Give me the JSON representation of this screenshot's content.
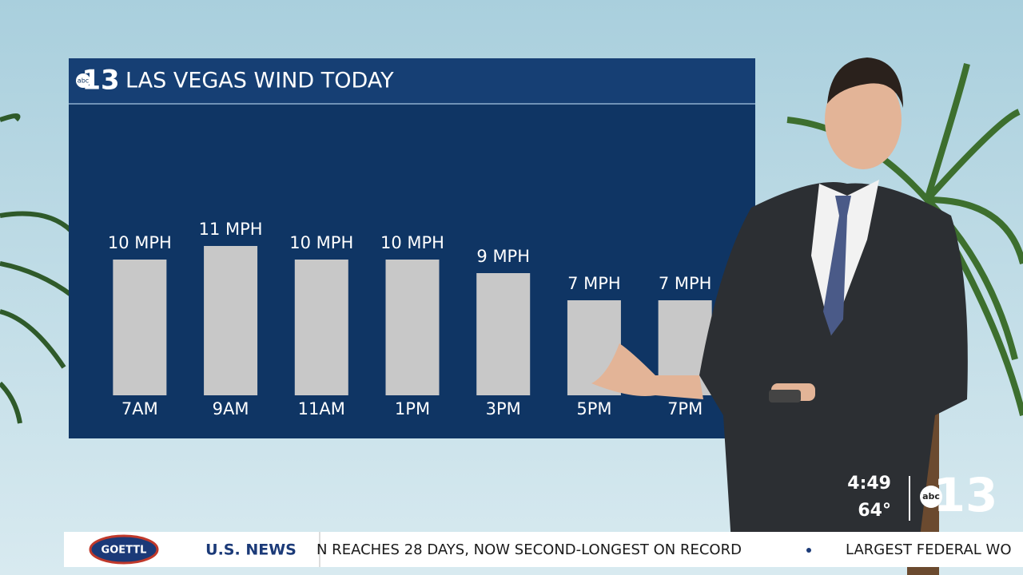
{
  "chart_data": {
    "type": "bar",
    "title": "LAS VEGAS WIND TODAY",
    "categories": [
      "7AM",
      "9AM",
      "11AM",
      "1PM",
      "3PM",
      "5PM",
      "7PM"
    ],
    "values": [
      10,
      11,
      10,
      10,
      9,
      7,
      7
    ],
    "value_labels": [
      "10 MPH",
      "11 MPH",
      "10 MPH",
      "10 MPH",
      "9 MPH",
      "7 MPH",
      "7 MPH"
    ],
    "color": "#c8c8c8"
  },
  "station": {
    "network": "abc",
    "number": "13"
  },
  "clock": {
    "time": "4:49",
    "temperature": "64°"
  },
  "ticker": {
    "sponsor": "GOETTL",
    "section": "U.S. NEWS",
    "items": [
      "N REACHES 28 DAYS, NOW SECOND-LONGEST ON RECORD",
      "LARGEST FEDERAL WO"
    ]
  }
}
